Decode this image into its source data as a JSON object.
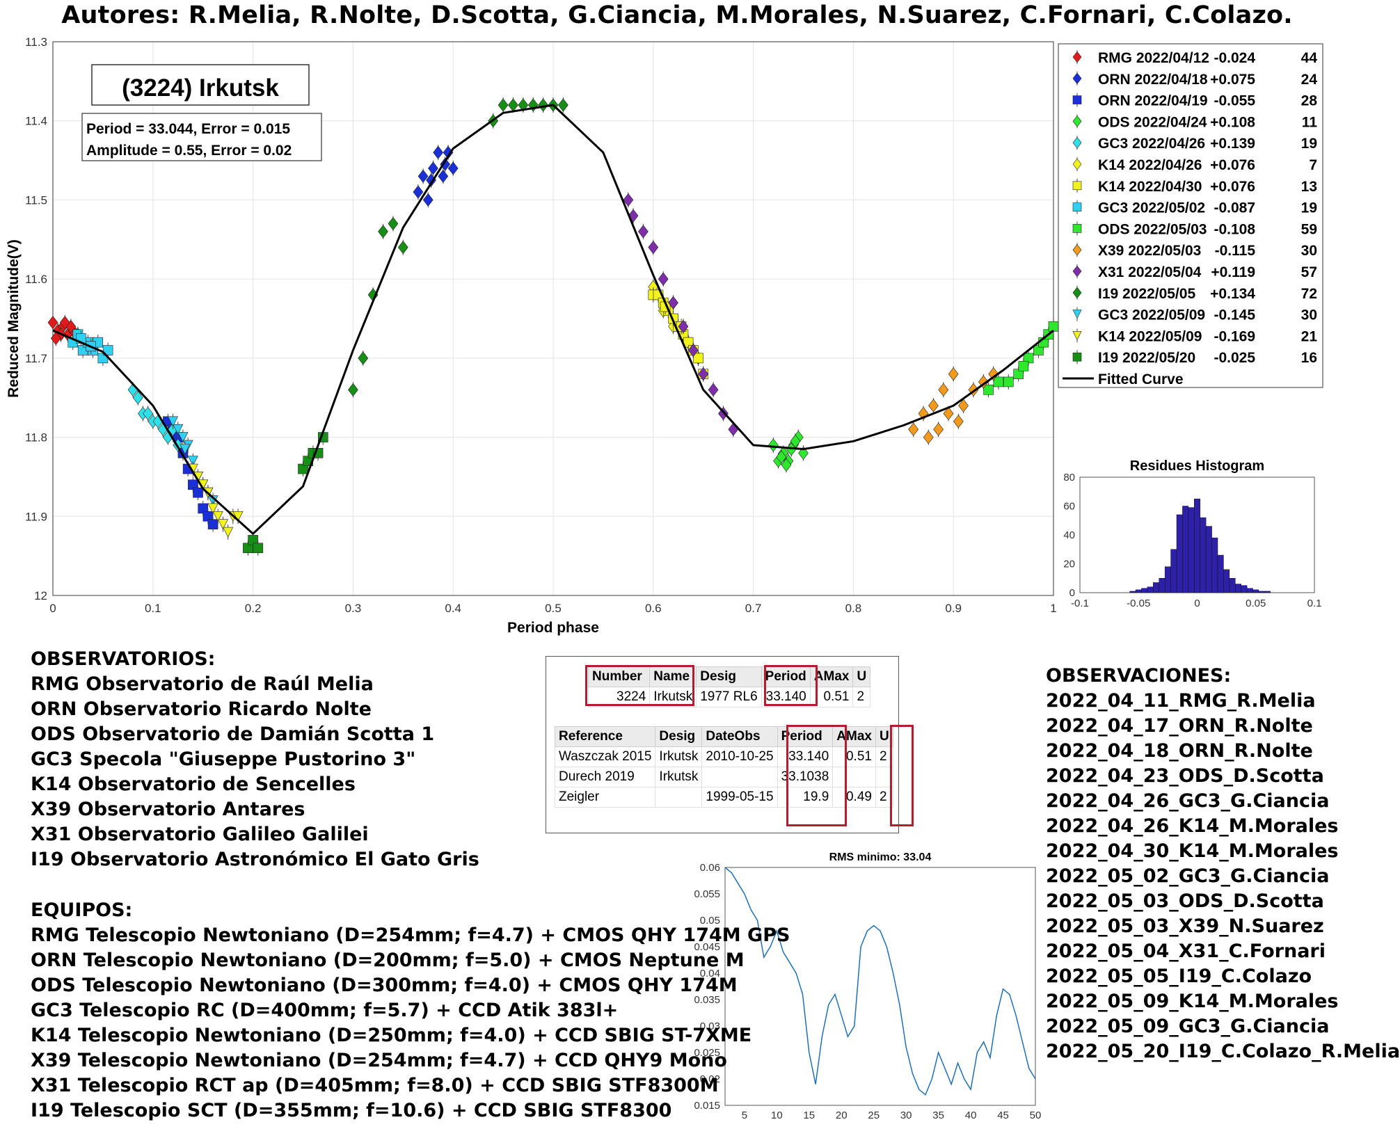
{
  "title": "Autores: R.Melia, R.Nolte, D.Scotta, G.Ciancia, M.Morales, N.Suarez, C.Fornari, C.Colazo.",
  "chart_data": [
    {
      "type": "scatter",
      "name_label": "(3224) Irkutsk",
      "info_lines": [
        "Period =  33.044, Error = 0.015",
        "Amplitude = 0.55, Error = 0.02"
      ],
      "xlabel": "Period phase",
      "ylabel": "Reduced Magnitude(V)",
      "xlim": [
        0,
        1
      ],
      "ylim": [
        11.3,
        12
      ],
      "y_reversed": true,
      "xticks": [
        "0",
        "0.1",
        "0.2",
        "0.3",
        "0.4",
        "0.5",
        "0.6",
        "0.7",
        "0.8",
        "0.9",
        "1"
      ],
      "yticks": [
        "11.3",
        "11.4",
        "11.5",
        "11.6",
        "11.7",
        "11.8",
        "11.9",
        "12"
      ],
      "grid": true,
      "legend_position": "outside-right-top",
      "fitted_curve": {
        "name": "Fitted Curve",
        "x": [
          0,
          0.05,
          0.1,
          0.15,
          0.2,
          0.25,
          0.3,
          0.35,
          0.4,
          0.45,
          0.5,
          0.55,
          0.6,
          0.65,
          0.7,
          0.75,
          0.8,
          0.85,
          0.9,
          0.95,
          1.0
        ],
        "y": [
          11.665,
          11.692,
          11.76,
          11.865,
          11.922,
          11.862,
          11.69,
          11.535,
          11.435,
          11.39,
          11.38,
          11.44,
          11.595,
          11.74,
          11.81,
          11.815,
          11.805,
          11.785,
          11.76,
          11.715,
          11.665
        ]
      },
      "series": [
        {
          "name": "RMG 2022/04/12",
          "offset": "-0.024",
          "count": "44",
          "marker": "diamond",
          "color": "#e01b1b",
          "x": [
            0.0,
            0.005,
            0.01,
            0.015,
            0.02,
            0.025,
            0.008,
            0.018,
            0.003,
            0.012
          ],
          "y": [
            11.655,
            11.665,
            11.66,
            11.67,
            11.665,
            11.67,
            11.67,
            11.66,
            11.675,
            11.655
          ]
        },
        {
          "name": "ORN 2022/04/18",
          "offset": "+0.075",
          "count": "24",
          "marker": "diamond",
          "color": "#1a2fd6",
          "x": [
            0.365,
            0.37,
            0.375,
            0.38,
            0.385,
            0.39,
            0.395,
            0.4,
            0.378,
            0.392
          ],
          "y": [
            11.49,
            11.47,
            11.5,
            11.46,
            11.44,
            11.47,
            11.44,
            11.46,
            11.475,
            11.455
          ]
        },
        {
          "name": "ORN 2022/04/19",
          "offset": "-0.055",
          "count": "28",
          "marker": "square",
          "color": "#1a2fd6",
          "x": [
            0.115,
            0.12,
            0.125,
            0.13,
            0.14,
            0.145,
            0.15,
            0.155,
            0.16,
            0.135
          ],
          "y": [
            11.78,
            11.79,
            11.8,
            11.82,
            11.86,
            11.87,
            11.89,
            11.9,
            11.91,
            11.84
          ]
        },
        {
          "name": "ODS 2022/04/24",
          "offset": "+0.108",
          "count": "11",
          "marker": "diamond",
          "color": "#2ee82e",
          "x": [
            0.72,
            0.725,
            0.73,
            0.735,
            0.74,
            0.745,
            0.75,
            0.728,
            0.738,
            0.733,
            0.742
          ],
          "y": [
            11.81,
            11.83,
            11.82,
            11.83,
            11.81,
            11.8,
            11.82,
            11.825,
            11.815,
            11.835,
            11.805
          ]
        },
        {
          "name": "GC3 2022/04/26",
          "offset": "+0.139",
          "count": "19",
          "marker": "diamond",
          "color": "#30e0e8",
          "x": [
            0.08,
            0.085,
            0.09,
            0.095,
            0.1,
            0.105,
            0.11,
            0.115,
            0.12,
            0.125
          ],
          "y": [
            11.74,
            11.75,
            11.77,
            11.77,
            11.78,
            11.78,
            11.79,
            11.8,
            11.79,
            11.81
          ]
        },
        {
          "name": "K14 2022/04/26",
          "offset": "+0.076",
          "count": "7",
          "marker": "diamond",
          "color": "#f2f21c",
          "x": [
            0.6,
            0.61,
            0.62,
            0.63,
            0.635,
            0.64,
            0.645
          ],
          "y": [
            11.61,
            11.64,
            11.66,
            11.67,
            11.68,
            11.69,
            11.7
          ]
        },
        {
          "name": "K14 2022/04/30",
          "offset": "+0.076",
          "count": "13",
          "marker": "square",
          "color": "#f2f21c",
          "x": [
            0.6,
            0.605,
            0.61,
            0.615,
            0.62,
            0.625,
            0.63,
            0.635,
            0.64,
            0.645,
            0.65,
            0.612,
            0.628
          ],
          "y": [
            11.62,
            11.62,
            11.63,
            11.64,
            11.65,
            11.66,
            11.67,
            11.68,
            11.69,
            11.7,
            11.72,
            11.635,
            11.66
          ]
        },
        {
          "name": "GC3 2022/05/02",
          "offset": "-0.087",
          "count": "19",
          "marker": "square",
          "color": "#30d0f0",
          "x": [
            0.02,
            0.025,
            0.03,
            0.035,
            0.04,
            0.045,
            0.05,
            0.055,
            0.028,
            0.038
          ],
          "y": [
            11.68,
            11.67,
            11.69,
            11.68,
            11.69,
            11.68,
            11.7,
            11.69,
            11.675,
            11.685
          ]
        },
        {
          "name": "ODS 2022/05/03",
          "offset": "-0.108",
          "count": "59",
          "marker": "square",
          "color": "#2ee82e",
          "x": [
            0.935,
            0.945,
            0.955,
            0.965,
            0.975,
            0.985,
            0.99,
            0.995,
            1.0,
            0.97
          ],
          "y": [
            11.74,
            11.73,
            11.73,
            11.72,
            11.7,
            11.69,
            11.68,
            11.67,
            11.66,
            11.71
          ]
        },
        {
          "name": "X39 2022/05/03",
          "offset": "-0.115",
          "count": "30",
          "marker": "diamond",
          "color": "#f29a1c",
          "x": [
            0.86,
            0.87,
            0.875,
            0.88,
            0.885,
            0.89,
            0.895,
            0.9,
            0.905,
            0.91,
            0.92,
            0.93,
            0.94
          ],
          "y": [
            11.79,
            11.77,
            11.8,
            11.76,
            11.79,
            11.74,
            11.77,
            11.72,
            11.78,
            11.76,
            11.74,
            11.73,
            11.72
          ]
        },
        {
          "name": "X31 2022/05/04",
          "offset": "+0.119",
          "count": "57",
          "marker": "diamond",
          "color": "#7d2ea8",
          "x": [
            0.575,
            0.58,
            0.59,
            0.6,
            0.61,
            0.62,
            0.63,
            0.64,
            0.65,
            0.66,
            0.67,
            0.68
          ],
          "y": [
            11.5,
            11.52,
            11.54,
            11.56,
            11.6,
            11.63,
            11.66,
            11.69,
            11.72,
            11.74,
            11.77,
            11.79
          ]
        },
        {
          "name": "I19 2022/05/05",
          "offset": "+0.134",
          "count": "72",
          "marker": "diamond",
          "color": "#178f17",
          "x": [
            0.3,
            0.31,
            0.32,
            0.33,
            0.34,
            0.35,
            0.44,
            0.45,
            0.46,
            0.47,
            0.48,
            0.49,
            0.5,
            0.51
          ],
          "y": [
            11.74,
            11.7,
            11.62,
            11.54,
            11.53,
            11.56,
            11.4,
            11.38,
            11.38,
            11.38,
            11.38,
            11.38,
            11.38,
            11.38
          ]
        },
        {
          "name": "GC3 2022/05/09",
          "offset": "-0.145",
          "count": "30",
          "marker": "triangle-down",
          "color": "#30d0f0",
          "x": [
            0.12,
            0.125,
            0.13,
            0.135,
            0.14,
            0.145,
            0.15,
            0.155,
            0.16,
            0.132
          ],
          "y": [
            11.78,
            11.79,
            11.8,
            11.81,
            11.83,
            11.85,
            11.86,
            11.87,
            11.88,
            11.815
          ]
        },
        {
          "name": "K14 2022/05/09",
          "offset": "-0.169",
          "count": "21",
          "marker": "triangle-down",
          "color": "#f2f21c",
          "x": [
            0.14,
            0.145,
            0.15,
            0.155,
            0.16,
            0.165,
            0.17,
            0.175,
            0.18,
            0.185
          ],
          "y": [
            11.84,
            11.85,
            11.86,
            11.87,
            11.89,
            11.9,
            11.91,
            11.92,
            11.9,
            11.9
          ]
        },
        {
          "name": "I19 2022/05/20",
          "offset": "-0.025",
          "count": "16",
          "marker": "square",
          "color": "#178f17",
          "x": [
            0.195,
            0.2,
            0.205,
            0.25,
            0.255,
            0.26,
            0.265,
            0.27
          ],
          "y": [
            11.94,
            11.93,
            11.94,
            11.84,
            11.83,
            11.82,
            11.82,
            11.8
          ]
        }
      ]
    },
    {
      "type": "bar",
      "title": "Residues Histogram",
      "xlim": [
        -0.1,
        0.1
      ],
      "ylim": [
        0,
        80
      ],
      "xticks": [
        "-0.1",
        "-0.05",
        "0",
        "0.05",
        "0.1"
      ],
      "yticks": [
        "0",
        "20",
        "40",
        "60",
        "80"
      ],
      "bin_centers": [
        -0.055,
        -0.05,
        -0.045,
        -0.04,
        -0.035,
        -0.03,
        -0.025,
        -0.02,
        -0.015,
        -0.01,
        -0.005,
        0.0,
        0.005,
        0.01,
        0.015,
        0.02,
        0.025,
        0.03,
        0.035,
        0.04,
        0.045,
        0.05,
        0.055,
        0.06
      ],
      "values": [
        1,
        2,
        3,
        4,
        7,
        10,
        18,
        30,
        54,
        60,
        59,
        65,
        52,
        46,
        38,
        26,
        16,
        10,
        6,
        5,
        3,
        2,
        1,
        1
      ],
      "color": "#2e21a8"
    },
    {
      "type": "line",
      "title": "RMS minimo: 33.04",
      "xlim": [
        2,
        50
      ],
      "ylim": [
        0.015,
        0.06
      ],
      "xticks": [
        "5",
        "10",
        "15",
        "20",
        "25",
        "30",
        "35",
        "40",
        "45",
        "50"
      ],
      "yticks": [
        "0.015",
        "0.02",
        "0.025",
        "0.03",
        "0.035",
        "0.04",
        "0.045",
        "0.05",
        "0.055",
        "0.06"
      ],
      "color": "#1f6fb8",
      "x": [
        2,
        3,
        4,
        5,
        6,
        7,
        8,
        9,
        10,
        11,
        12,
        13,
        14,
        15,
        16,
        17,
        18,
        19,
        20,
        21,
        22,
        23,
        24,
        25,
        26,
        27,
        28,
        29,
        30,
        31,
        32,
        33,
        34,
        35,
        36,
        37,
        38,
        39,
        40,
        41,
        42,
        43,
        44,
        45,
        46,
        47,
        48,
        49,
        50
      ],
      "y": [
        0.06,
        0.059,
        0.057,
        0.055,
        0.052,
        0.05,
        0.043,
        0.045,
        0.048,
        0.044,
        0.042,
        0.04,
        0.036,
        0.025,
        0.019,
        0.028,
        0.034,
        0.036,
        0.032,
        0.028,
        0.03,
        0.045,
        0.048,
        0.049,
        0.048,
        0.045,
        0.04,
        0.034,
        0.026,
        0.021,
        0.018,
        0.017,
        0.02,
        0.025,
        0.022,
        0.019,
        0.023,
        0.02,
        0.018,
        0.025,
        0.027,
        0.024,
        0.032,
        0.037,
        0.036,
        0.032,
        0.027,
        0.022,
        0.02
      ]
    }
  ],
  "observatorios": {
    "heading": "OBSERVATORIOS:",
    "lines": [
      "RMG Observatorio de Raúl Melia",
      "ORN Observatorio Ricardo Nolte",
      "ODS Observatorio de Damián Scotta 1",
      "GC3 Specola \"Giuseppe Pustorino 3\"",
      "K14 Observatorio de Sencelles",
      "X39 Observatorio Antares",
      "X31 Observatorio Galileo Galilei",
      "I19 Observatorio Astronómico El Gato Gris"
    ]
  },
  "equipos": {
    "heading": "EQUIPOS:",
    "lines": [
      "RMG Telescopio Newtoniano (D=254mm; f=4.7) + CMOS QHY 174M GPS",
      "ORN Telescopio Newtoniano (D=200mm; f=5.0) + CMOS Neptune M",
      "ODS Telescopio Newtoniano (D=300mm; f=4.0) + CMOS QHY 174M",
      "GC3 Telescopio RC (D=400mm; f=5.7) + CCD Atik 383l+",
      "K14 Telescopio Newtoniano (D=250mm; f=4.0) + CCD SBIG ST-7XME",
      "X39 Telescopio Newtoniano (D=254mm; f=4.7) + CCD QHY9 Mono",
      "X31 Telescopio RCT ap (D=405mm; f=8.0) + CCD SBIG STF8300M",
      "I19 Telescopio SCT (D=355mm; f=10.6) + CCD SBIG STF8300"
    ]
  },
  "observaciones": {
    "heading": "OBSERVACIONES:",
    "lines": [
      "2022_04_11_RMG_R.Melia",
      "2022_04_17_ORN_R.Nolte",
      "2022_04_18_ORN_R.Nolte",
      "2022_04_23_ODS_D.Scotta",
      "2022_04_26_GC3_G.Ciancia",
      "2022_04_26_K14_M.Morales",
      "2022_04_30_K14_M.Morales",
      "2022_05_02_GC3_G.Ciancia",
      "2022_05_03_ODS_D.Scotta",
      "2022_05_03_X39_N.Suarez",
      "2022_05_04_X31_C.Fornari",
      "2022_05_05_I19_C.Colazo",
      "2022_05_09_K14_M.Morales",
      "2022_05_09_GC3_G.Ciancia",
      "2022_05_20_I19_C.Colazo_R.Melia"
    ]
  },
  "lcdb_table": {
    "top_headers": [
      "Number",
      "Name",
      "Desig",
      "Period",
      "AMax",
      "U"
    ],
    "top_row": [
      "3224",
      "Irkutsk",
      "1977 RL6",
      "33.140",
      "0.51",
      "2"
    ],
    "ref_headers": [
      "Reference",
      "Desig",
      "DateObs",
      "Period",
      "AMax",
      "U"
    ],
    "ref_rows": [
      [
        "Waszczak 2015",
        "Irkutsk",
        "2010-10-25",
        "33.140",
        "0.51",
        "2"
      ],
      [
        "Durech 2019",
        "Irkutsk",
        "",
        "33.1038",
        "",
        ""
      ],
      [
        "Zeigler",
        "",
        "1999-05-15",
        "19.9",
        "0.49",
        "2"
      ]
    ]
  }
}
